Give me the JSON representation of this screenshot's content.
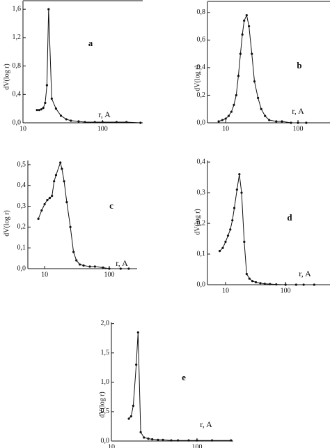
{
  "chart_data": [
    {
      "type": "line",
      "label": "a",
      "ylabel": "dV(log r)",
      "annotation": "r, A",
      "log_x": true,
      "frame_top": true,
      "color": "#111111",
      "x": [
        15,
        16,
        17,
        18,
        19,
        20,
        21,
        23,
        26,
        30,
        35,
        40,
        50,
        60,
        80,
        100,
        150,
        200,
        300
      ],
      "values": [
        0.18,
        0.18,
        0.19,
        0.21,
        0.28,
        0.53,
        1.6,
        0.34,
        0.2,
        0.1,
        0.05,
        0.03,
        0.02,
        0.01,
        0.01,
        0.01,
        0.01,
        0.01,
        0.0
      ],
      "xlim": [
        10,
        320
      ],
      "xticks": [
        10,
        100
      ],
      "ylim": [
        0,
        1.72
      ],
      "yticks": [
        {
          "value": 0,
          "label": "0,0"
        },
        {
          "value": 0.4,
          "label": "0,4"
        },
        {
          "value": 0.8,
          "label": "0,8"
        },
        {
          "value": 1.2,
          "label": "1,2"
        },
        {
          "value": 1.6,
          "label": "1,6"
        }
      ]
    },
    {
      "type": "line",
      "label": "b",
      "ylabel": "dV(log r)",
      "annotation": "r, A",
      "log_x": true,
      "frame_top": true,
      "color": "#111111",
      "x": [
        8,
        9,
        10,
        11,
        12,
        13,
        14,
        15,
        16,
        17,
        18,
        19.5,
        21,
        23,
        25,
        28,
        31,
        35,
        40,
        50,
        60,
        80,
        100,
        130
      ],
      "values": [
        0.01,
        0.02,
        0.03,
        0.05,
        0.08,
        0.13,
        0.2,
        0.34,
        0.5,
        0.64,
        0.74,
        0.78,
        0.7,
        0.5,
        0.3,
        0.18,
        0.1,
        0.05,
        0.02,
        0.01,
        0.01,
        0.0,
        0.0,
        0.0
      ],
      "xlim": [
        5.6,
        277
      ],
      "xticks": [
        10,
        100
      ],
      "ylim": [
        0,
        0.88
      ],
      "yticks": [
        {
          "value": 0,
          "label": "0,0"
        },
        {
          "value": 0.2,
          "label": "0,2"
        },
        {
          "value": 0.4,
          "label": "0,4"
        },
        {
          "value": 0.6,
          "label": "0,6"
        },
        {
          "value": 0.8,
          "label": "0,8"
        }
      ]
    },
    {
      "type": "line",
      "label": "c",
      "ylabel": "dV(log r)",
      "annotation": "r, A",
      "log_x": true,
      "frame_top": false,
      "color": "#111111",
      "x": [
        8,
        9,
        10,
        11,
        12,
        13,
        14,
        15,
        17.5,
        18.5,
        20,
        22,
        25,
        28,
        31,
        35,
        40,
        50,
        60,
        80,
        100,
        150,
        200
      ],
      "values": [
        0.24,
        0.28,
        0.31,
        0.33,
        0.34,
        0.35,
        0.42,
        0.45,
        0.51,
        0.48,
        0.42,
        0.32,
        0.2,
        0.08,
        0.04,
        0.02,
        0.015,
        0.01,
        0.01,
        0.005,
        0.0,
        0.0,
        0.0
      ],
      "xlim": [
        5.5,
        270
      ],
      "xticks": [
        10,
        100
      ],
      "ylim": [
        0,
        0.52
      ],
      "yticks": [
        {
          "value": 0,
          "label": "0,0"
        },
        {
          "value": 0.1,
          "label": "0,1"
        },
        {
          "value": 0.2,
          "label": "0,2"
        },
        {
          "value": 0.3,
          "label": "0,3"
        },
        {
          "value": 0.4,
          "label": "0,4"
        },
        {
          "value": 0.5,
          "label": "0,5"
        }
      ]
    },
    {
      "type": "line",
      "label": "d",
      "ylabel": "dV(log r)",
      "annotation": "r, A",
      "log_x": true,
      "frame_top": false,
      "color": "#111111",
      "x": [
        8,
        9,
        10,
        11,
        12,
        13,
        14,
        15.5,
        17,
        18.5,
        20.5,
        22.5,
        25,
        28,
        32,
        38,
        45,
        55,
        70,
        100,
        150,
        200,
        300
      ],
      "values": [
        0.11,
        0.12,
        0.14,
        0.16,
        0.18,
        0.21,
        0.25,
        0.31,
        0.36,
        0.3,
        0.14,
        0.035,
        0.02,
        0.012,
        0.008,
        0.005,
        0.003,
        0.002,
        0.001,
        0.0,
        0.0,
        0.0,
        0.0
      ],
      "xlim": [
        5,
        550
      ],
      "xticks": [
        10,
        100
      ],
      "ylim": [
        0,
        0.405
      ],
      "yticks": [
        {
          "value": 0,
          "label": "0,0"
        },
        {
          "value": 0.1,
          "label": "0,1"
        },
        {
          "value": 0.2,
          "label": "0,2"
        },
        {
          "value": 0.3,
          "label": "0,3"
        },
        {
          "value": 0.4,
          "label": "0,4"
        }
      ]
    },
    {
      "type": "line",
      "label": "e",
      "ylabel": "dV(log r)",
      "annotation": "r, A",
      "log_x": true,
      "frame_top": false,
      "color": "#111111",
      "x": [
        16,
        17,
        18,
        19.5,
        20.5,
        22,
        24,
        27,
        30,
        35,
        40,
        50,
        60,
        80,
        100,
        150,
        250
      ],
      "values": [
        0.38,
        0.42,
        0.6,
        1.3,
        1.85,
        0.15,
        0.06,
        0.04,
        0.03,
        0.02,
        0.02,
        0.01,
        0.01,
        0.01,
        0.01,
        0.01,
        0.01
      ],
      "xlim": [
        10,
        265
      ],
      "xticks": [
        10,
        100
      ],
      "ylim": [
        0,
        2.02
      ],
      "yticks": [
        {
          "value": 0,
          "label": "0,0"
        },
        {
          "value": 0.5,
          "label": "0,5"
        },
        {
          "value": 1.0,
          "label": "1,0"
        },
        {
          "value": 1.5,
          "label": "1,5"
        },
        {
          "value": 2.0,
          "label": "2,0"
        }
      ]
    }
  ]
}
